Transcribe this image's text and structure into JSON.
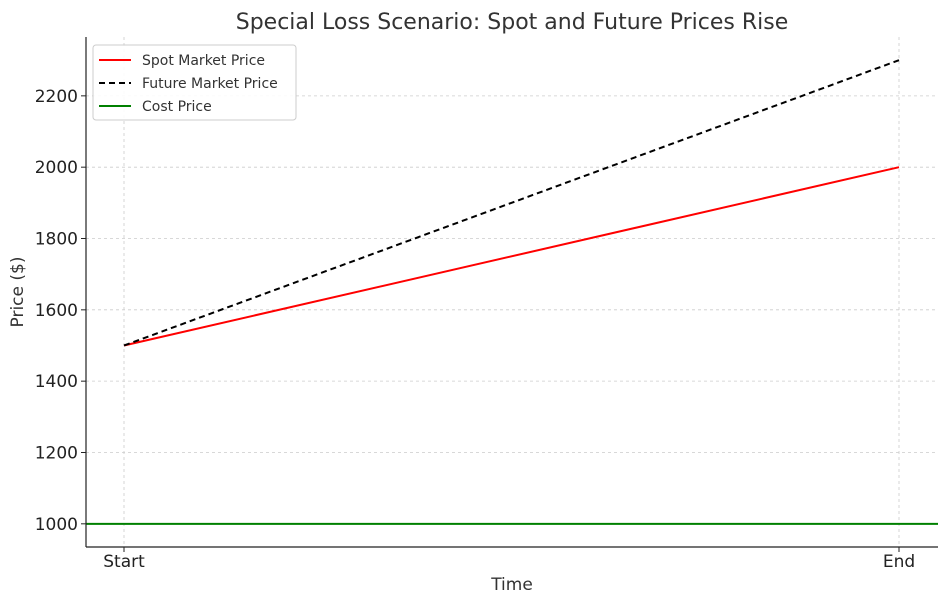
{
  "chart_data": {
    "type": "line",
    "title": "Special Loss Scenario: Spot and Future Prices Rise",
    "xlabel": "Time",
    "ylabel": "Price ($)",
    "categories": [
      "Start",
      "End"
    ],
    "y_ticks": [
      1000,
      1200,
      1400,
      1600,
      1800,
      2000,
      2200
    ],
    "ylim": [
      935,
      2365
    ],
    "grid": true,
    "legend_position": "top-left",
    "series": [
      {
        "name": "Spot Market Price",
        "values": [
          1500,
          2000
        ],
        "color": "#ff0000",
        "style": "solid"
      },
      {
        "name": "Future Market Price",
        "values": [
          1500,
          2300
        ],
        "color": "#000000",
        "style": "dashed"
      },
      {
        "name": "Cost Price",
        "values": [
          1000,
          1000
        ],
        "color": "#008000",
        "style": "solid",
        "span": "full"
      }
    ]
  }
}
